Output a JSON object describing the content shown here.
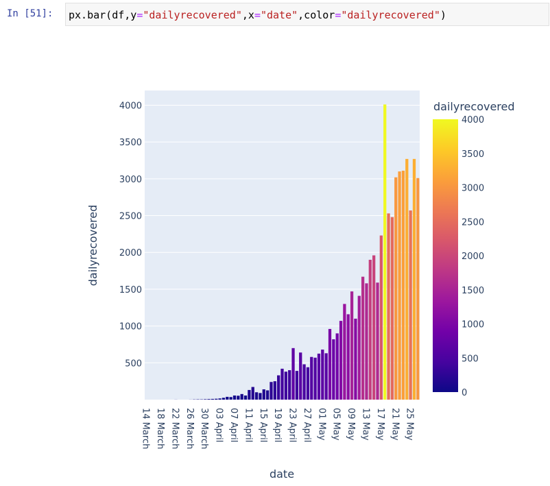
{
  "cell": {
    "prompt": "In [51]:",
    "code_parts": [
      {
        "t": "px.bar(df,y",
        "c": "plain"
      },
      {
        "t": "=",
        "c": "kw"
      },
      {
        "t": "\"dailyrecovered\"",
        "c": "str"
      },
      {
        "t": ",x",
        "c": "plain"
      },
      {
        "t": "=",
        "c": "kw"
      },
      {
        "t": "\"date\"",
        "c": "str"
      },
      {
        "t": ",color",
        "c": "plain"
      },
      {
        "t": "=",
        "c": "kw"
      },
      {
        "t": "\"dailyrecovered\"",
        "c": "str"
      },
      {
        "t": ")",
        "c": "plain"
      }
    ]
  },
  "chart_data": {
    "type": "bar",
    "title": "",
    "xlabel": "date",
    "ylabel": "dailyrecovered",
    "ylim": [
      0,
      4200
    ],
    "yticks": [
      500,
      1000,
      1500,
      2000,
      2500,
      3000,
      3500,
      4000
    ],
    "xtick_labels": [
      "14 March",
      "18 March",
      "22 March",
      "26 March",
      "30 March",
      "03 April",
      "07 April",
      "11 April",
      "15 April",
      "19 April",
      "23 April",
      "27 April",
      "01 May",
      "05 May",
      "09 May",
      "13 May",
      "17 May",
      "21 May",
      "25 May"
    ],
    "colorbar": {
      "title": "dailyrecovered",
      "range": [
        0,
        4000
      ],
      "ticks": [
        0,
        500,
        1000,
        1500,
        2000,
        2500,
        3000,
        3500,
        4000
      ],
      "colorscale": [
        "#0d0887",
        "#46039f",
        "#7201a8",
        "#9c179e",
        "#bd3786",
        "#d8576b",
        "#ed7953",
        "#fb9f3a",
        "#fdca26",
        "#f0f921"
      ]
    },
    "background_color": "#e5ecf6",
    "grid_color": "#ffffff",
    "label_color": "#2a3f5f",
    "series": [
      {
        "name": "dailyrecovered",
        "values": [
          0,
          0,
          0,
          0,
          0,
          0,
          0,
          0,
          1,
          0,
          0,
          0,
          1,
          3,
          4,
          4,
          6,
          8,
          10,
          12,
          16,
          25,
          38,
          35,
          56,
          53,
          76,
          56,
          131,
          172,
          100,
          90,
          140,
          126,
          240,
          250,
          330,
          420,
          380,
          400,
          700,
          390,
          640,
          480,
          440,
          580,
          570,
          625,
          680,
          630,
          960,
          820,
          900,
          1070,
          1300,
          1160,
          1470,
          1100,
          1410,
          1670,
          1580,
          1900,
          1960,
          1590,
          2230,
          4010,
          2530,
          2480,
          3020,
          3100,
          3110,
          3270,
          2570,
          3270,
          3010
        ]
      }
    ]
  }
}
